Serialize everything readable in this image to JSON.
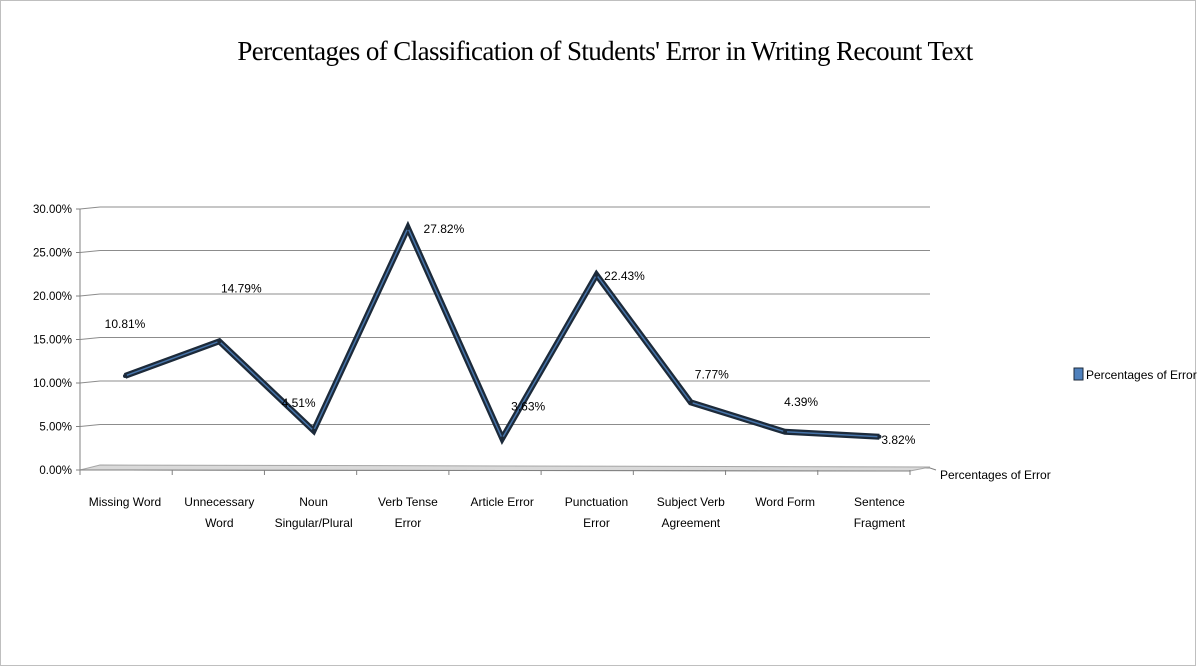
{
  "chart_data": {
    "type": "line",
    "title": "Percentages of Classification of Students' Error in Writing Recount Text",
    "categories": [
      [
        "Missing Word"
      ],
      [
        "Unnecessary",
        "Word"
      ],
      [
        "Noun",
        "Singular/Plural"
      ],
      [
        "Verb Tense",
        "Error"
      ],
      [
        "Article Error"
      ],
      [
        "Punctuation",
        "Error"
      ],
      [
        "Subject Verb",
        "Agreement"
      ],
      [
        "Word Form"
      ],
      [
        "Sentence",
        "Fragment"
      ]
    ],
    "series": [
      {
        "name": "Percentages of Error",
        "values": [
          10.81,
          14.79,
          4.51,
          27.82,
          3.63,
          22.43,
          7.77,
          4.39,
          3.82
        ],
        "labels": [
          "10.81%",
          "14.79%",
          "4.51%",
          "27.82%",
          "3.63%",
          "22.43%",
          "7.77%",
          "4.39%",
          "3.82%"
        ]
      }
    ],
    "ylim": [
      0,
      30
    ],
    "yticks": [
      {
        "value": 0,
        "label": "0.00%"
      },
      {
        "value": 5,
        "label": "5.00%"
      },
      {
        "value": 10,
        "label": "10.00%"
      },
      {
        "value": 15,
        "label": "15.00%"
      },
      {
        "value": 20,
        "label": "20.00%"
      },
      {
        "value": 25,
        "label": "25.00%"
      },
      {
        "value": 30,
        "label": "30.00%"
      }
    ],
    "depth_axis_label": "Percentages of Error",
    "grid": true,
    "legend_position": "right",
    "colors": {
      "line": "#1c2a3a",
      "line_highlight": "#4f81bd",
      "legend_swatch": "#4f81bd",
      "grid": "#8c8c8c"
    }
  }
}
